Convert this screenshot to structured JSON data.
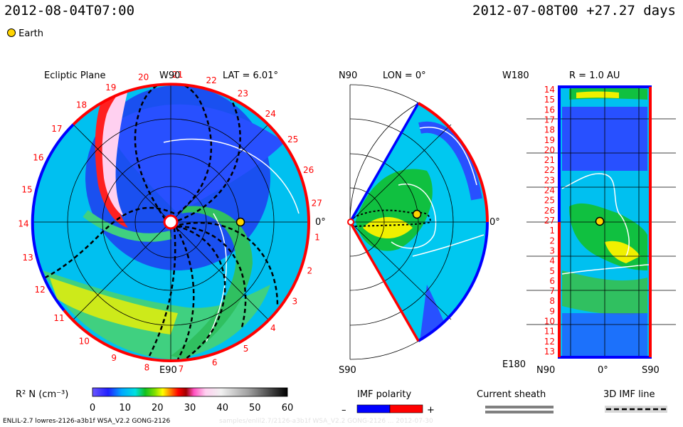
{
  "header": {
    "date_left": "2012-08-04T07:00",
    "date_right": "2012-07-08T00 +27.27 days",
    "legend_earth": "Earth",
    "colors": {
      "earth": "#ffd400",
      "red": "#ff0000",
      "blue": "#0000ff"
    }
  },
  "panels": {
    "ecliptic": {
      "title": "Ecliptic Plane",
      "top_label": "W90",
      "bottom_label": "E90",
      "lat_label": "LAT = 6.01°",
      "right_label": "0°",
      "sector_numbers": [
        "19",
        "20",
        "21",
        "22",
        "23",
        "24",
        "25",
        "26",
        "27",
        "1",
        "2",
        "3",
        "4",
        "5",
        "6",
        "7",
        "8",
        "9",
        "10",
        "11",
        "12",
        "13",
        "14",
        "15",
        "16",
        "17",
        "18"
      ]
    },
    "meridional": {
      "top_label": "N90",
      "bottom_label": "S90",
      "lon_label": "LON = 0°",
      "right_label": "0°"
    },
    "radial": {
      "title": "R = 1.0 AU",
      "corner_tl": "W180",
      "corner_bl": "E180",
      "x_left": "N90",
      "x_mid": "0°",
      "x_right": "S90",
      "y_numbers": [
        "14",
        "15",
        "16",
        "17",
        "18",
        "19",
        "20",
        "21",
        "22",
        "23",
        "24",
        "25",
        "26",
        "27",
        "1",
        "2",
        "3",
        "4",
        "5",
        "6",
        "7",
        "8",
        "9",
        "10",
        "11",
        "12",
        "13"
      ]
    }
  },
  "colorbar": {
    "label": "R² N (cm⁻³)",
    "ticks": [
      "0",
      "10",
      "20",
      "30",
      "40",
      "50",
      "60"
    ],
    "range": [
      0,
      60
    ]
  },
  "legend": {
    "imf_title": "IMF polarity",
    "imf_minus": "–",
    "imf_plus": "+",
    "sheath_title": "Current sheath",
    "imf3d_title": "3D IMF line"
  },
  "footer": {
    "model_text": "ENLIL-2.7 lowres-2126-a3b1f WSA_V2.2 GONG-2126",
    "faded_text": "samples/enlil2.7/2126-a3b1f WSA_V2.2 GONG-2126 ... 2012-07-30"
  },
  "chart_data": {
    "type": "heatmap",
    "title": "",
    "variable": "R² N (cm⁻³)",
    "colorbar_range": [
      0,
      60
    ],
    "earth_marker": true,
    "panels": [
      "Ecliptic Plane",
      "LON = 0°",
      "R = 1.0 AU"
    ]
  }
}
